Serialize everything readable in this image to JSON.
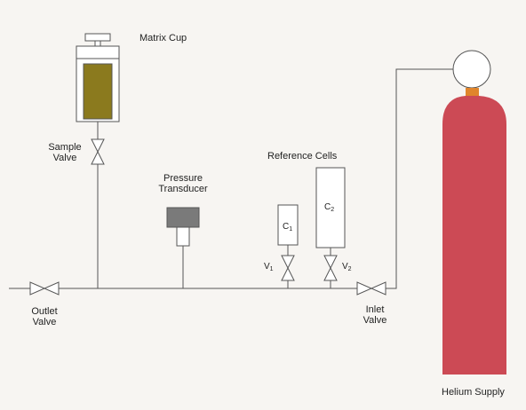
{
  "labels": {
    "matrix_cup": "Matrix Cup",
    "sample_valve_line1": "Sample",
    "sample_valve_line2": "Valve",
    "pressure_transducer_line1": "Pressure",
    "pressure_transducer_line2": "Transducer",
    "reference_cells": "Reference Cells",
    "cell1_letter": "C",
    "cell1_sub": "1",
    "cell2_letter": "C",
    "cell2_sub": "2",
    "valve1_letter": "V",
    "valve1_sub": "1",
    "valve2_letter": "V",
    "valve2_sub": "2",
    "outlet_valve_line1": "Outlet",
    "outlet_valve_line2": "Valve",
    "inlet_valve_line1": "Inlet",
    "inlet_valve_line2": "Valve",
    "helium_supply": "Helium Supply"
  },
  "colors": {
    "background": "#f7f5f2",
    "line": "#555555",
    "matrix_fill": "#8b7a1e",
    "cylinder": "#cc4a55",
    "cylinder_neck": "#e0852c",
    "transducer": "#7a7a7a"
  }
}
